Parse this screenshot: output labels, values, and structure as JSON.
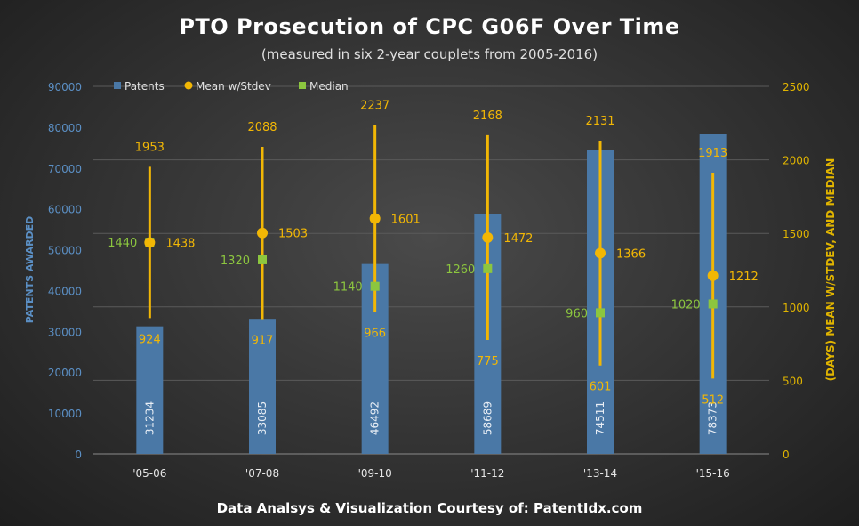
{
  "chart_data": {
    "type": "bar",
    "title": "PTO Prosecution  of CPC G06F Over Time",
    "subtitle": "(measured in six 2-year couplets from 2005-2016)",
    "footer": "Data Analsys & Visualization Courtesy of: PatentIdx.com",
    "categories": [
      "'05-06",
      "'07-08",
      "'09-10",
      "'11-12",
      "'13-14",
      "'15-16"
    ],
    "ylabel": "PATENTS AWARDED",
    "y2label": "(DAYS) MEAN W/STDEV, AND MEDIAN",
    "ylim": [
      0,
      90000
    ],
    "y2lim": [
      0,
      2500
    ],
    "yticks": [
      "0",
      "10000",
      "20000",
      "30000",
      "40000",
      "50000",
      "60000",
      "70000",
      "80000",
      "90000"
    ],
    "y2ticks": [
      "0",
      "500",
      "1000",
      "1500",
      "2000",
      "2500"
    ],
    "legend": [
      "Patents",
      "Mean w/Stdev",
      "Median"
    ],
    "legend_position": "top",
    "grid": true,
    "series": [
      {
        "name": "Patents",
        "axis": "left",
        "type": "bar",
        "values": [
          31234,
          33085,
          46492,
          58689,
          74511,
          78373
        ]
      },
      {
        "name": "Mean w/Stdev",
        "axis": "right",
        "type": "errorbar",
        "values": [
          1438,
          1503,
          1601,
          1472,
          1366,
          1212
        ],
        "upper": [
          1953,
          2088,
          2237,
          2168,
          2131,
          1913
        ],
        "lower": [
          924,
          917,
          966,
          775,
          601,
          512
        ]
      },
      {
        "name": "Median",
        "axis": "right",
        "type": "scatter",
        "values": [
          1440,
          1320,
          1140,
          1260,
          960,
          1020
        ]
      }
    ],
    "colors": {
      "bar": "#4a78a6",
      "mean": "#f2b705",
      "median": "#8cc63f",
      "leftAxis": "#5b8fc4",
      "rightAxis": "#e0b400",
      "grid": "#5a5a5a"
    }
  }
}
